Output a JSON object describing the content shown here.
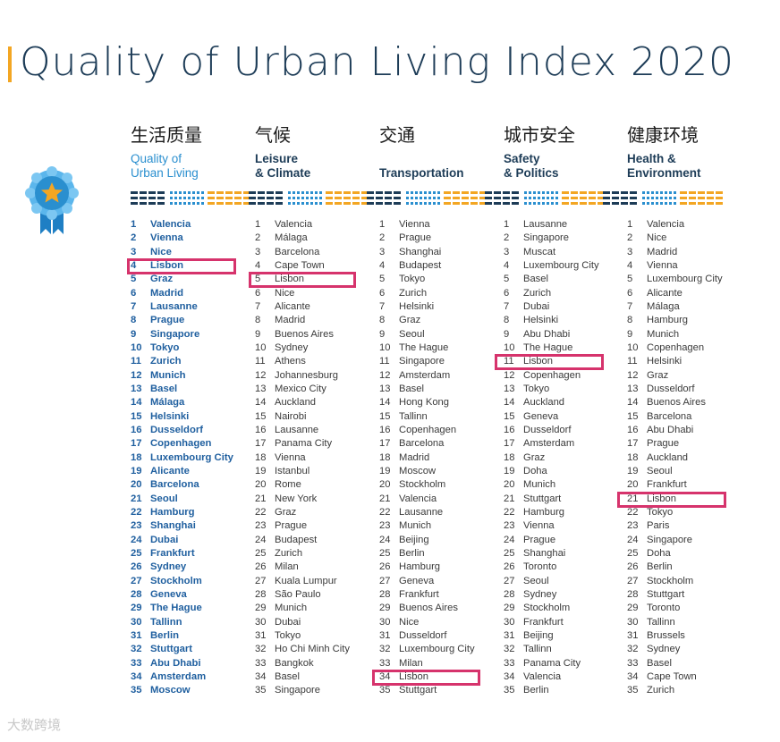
{
  "title": "Quality of Urban Living Index 2020",
  "watermark": "大数跨境",
  "colors": {
    "accent_orange": "#f3a623",
    "navy": "#1d3c57",
    "blue": "#2a8fcf",
    "highlight": "#d6336c"
  },
  "badge_icon": "award-ribbon-star-icon",
  "chart_data": {
    "type": "table",
    "columns": [
      {
        "header_cn": "生活质量",
        "header_en": [
          "Quality of",
          "Urban Living"
        ],
        "rows": [
          "Valencia",
          "Vienna",
          "Nice",
          "Lisbon",
          "Graz",
          "Madrid",
          "Lausanne",
          "Prague",
          "Singapore",
          "Tokyo",
          "Zurich",
          "Munich",
          "Basel",
          "Málaga",
          "Helsinki",
          "Dusseldorf",
          "Copenhagen",
          "Luxembourg City",
          "Alicante",
          "Barcelona",
          "Seoul",
          "Hamburg",
          "Shanghai",
          "Dubai",
          "Frankfurt",
          "Sydney",
          "Stockholm",
          "Geneva",
          "The Hague",
          "Tallinn",
          "Berlin",
          "Stuttgart",
          "Abu Dhabi",
          "Amsterdam",
          "Moscow"
        ],
        "highlight_rank": 4
      },
      {
        "header_cn": "气候",
        "header_en": [
          "Leisure",
          "& Climate"
        ],
        "rows": [
          "Valencia",
          "Málaga",
          "Barcelona",
          "Cape Town",
          "Lisbon",
          "Nice",
          "Alicante",
          "Madrid",
          "Buenos Aires",
          "Sydney",
          "Athens",
          "Johannesburg",
          "Mexico City",
          "Auckland",
          "Nairobi",
          "Lausanne",
          "Panama City",
          "Vienna",
          "Istanbul",
          "Rome",
          "New York",
          "Graz",
          "Prague",
          "Budapest",
          "Zurich",
          "Milan",
          "Kuala Lumpur",
          "São Paulo",
          "Munich",
          "Dubai",
          "Tokyo",
          "Ho Chi Minh City",
          "Bangkok",
          "Basel",
          "Singapore"
        ],
        "highlight_rank": 5
      },
      {
        "header_cn": "交通",
        "header_en": [
          "",
          "Transportation"
        ],
        "rows": [
          "Vienna",
          "Prague",
          "Shanghai",
          "Budapest",
          "Tokyo",
          "Zurich",
          "Helsinki",
          "Graz",
          "Seoul",
          "The Hague",
          "Singapore",
          "Amsterdam",
          "Basel",
          "Hong Kong",
          "Tallinn",
          "Copenhagen",
          "Barcelona",
          "Madrid",
          "Moscow",
          "Stockholm",
          "Valencia",
          "Lausanne",
          "Munich",
          "Beijing",
          "Berlin",
          "Hamburg",
          "Geneva",
          "Frankfurt",
          "Buenos Aires",
          "Nice",
          "Dusseldorf",
          "Luxembourg City",
          "Milan",
          "Lisbon",
          "Stuttgart"
        ],
        "highlight_rank": 34
      },
      {
        "header_cn": "城市安全",
        "header_en": [
          "Safety",
          "& Politics"
        ],
        "rows": [
          "Lausanne",
          "Singapore",
          "Muscat",
          "Luxembourg City",
          "Basel",
          "Zurich",
          "Dubai",
          "Helsinki",
          "Abu Dhabi",
          "The Hague",
          "Lisbon",
          "Copenhagen",
          "Tokyo",
          "Auckland",
          "Geneva",
          "Dusseldorf",
          "Amsterdam",
          "Graz",
          "Doha",
          "Munich",
          "Stuttgart",
          "Hamburg",
          "Vienna",
          "Prague",
          "Shanghai",
          "Toronto",
          "Seoul",
          "Sydney",
          "Stockholm",
          "Frankfurt",
          "Beijing",
          "Tallinn",
          "Panama City",
          "Valencia",
          "Berlin"
        ],
        "highlight_rank": 11
      },
      {
        "header_cn": "健康环境",
        "header_en": [
          "Health &",
          "Environment"
        ],
        "rows": [
          "Valencia",
          "Nice",
          "Madrid",
          "Vienna",
          "Luxembourg City",
          "Alicante",
          "Málaga",
          "Hamburg",
          "Munich",
          "Copenhagen",
          "Helsinki",
          "Graz",
          "Dusseldorf",
          "Buenos Aires",
          "Barcelona",
          "Abu Dhabi",
          "Prague",
          "Auckland",
          "Seoul",
          "Frankfurt",
          "Lisbon",
          "Tokyo",
          "Paris",
          "Singapore",
          "Doha",
          "Berlin",
          "Stockholm",
          "Stuttgart",
          "Toronto",
          "Tallinn",
          "Brussels",
          "Sydney",
          "Basel",
          "Cape Town",
          "Zurich"
        ],
        "highlight_rank": 21
      }
    ]
  }
}
